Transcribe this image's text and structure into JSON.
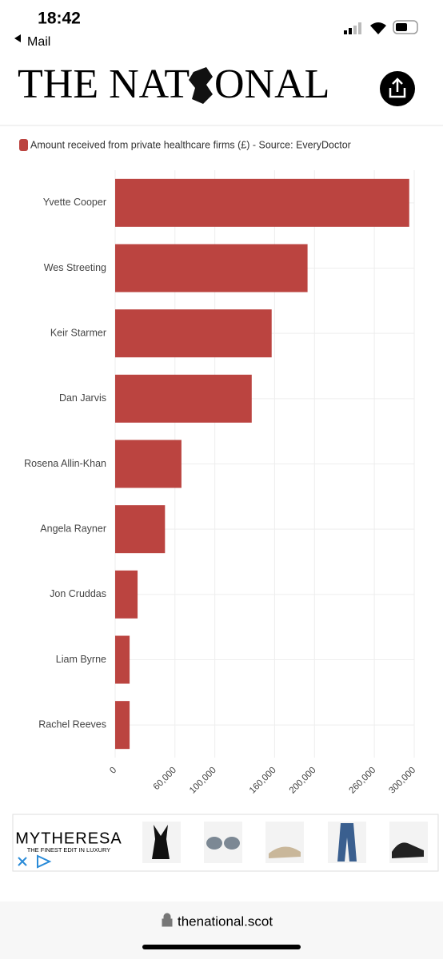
{
  "status": {
    "time": "18:42",
    "back": "Mail"
  },
  "header": {
    "logo_left": "THE NAT",
    "logo_right": "ONAL"
  },
  "chart_data": {
    "type": "bar",
    "orientation": "horizontal",
    "categories": [
      "Yvette Cooper",
      "Wes Streeting",
      "Keir Starmer",
      "Dan Jarvis",
      "Rosena Allin-Khan",
      "Angela Rayner",
      "Jon Cruddas",
      "Liam Byrne",
      "Rachel Reeves"
    ],
    "series": [
      {
        "name": "Amount received from private healthcare firms (£) - Source: EveryDoctor",
        "color": "#bb4440",
        "values": [
          295000,
          193000,
          157000,
          137000,
          66500,
          50000,
          22500,
          14500,
          14500
        ]
      }
    ],
    "xlim": [
      0,
      300000
    ],
    "xticks": [
      0,
      {
        "value": 60000,
        "label": "60,000"
      },
      {
        "value": 100000,
        "label": "100,000"
      },
      {
        "value": 160000,
        "label": "160,000"
      },
      {
        "value": 200000,
        "label": "200,000"
      },
      {
        "value": 260000,
        "label": "260,000"
      },
      {
        "value": 300000,
        "label": "300,000"
      }
    ],
    "grid": true,
    "legend": "top-left"
  },
  "ad": {
    "brand": "MYTHERESA",
    "tagline": "THE FINEST EDIT IN LUXURY"
  },
  "footer": {
    "url": "thenational.scot"
  }
}
